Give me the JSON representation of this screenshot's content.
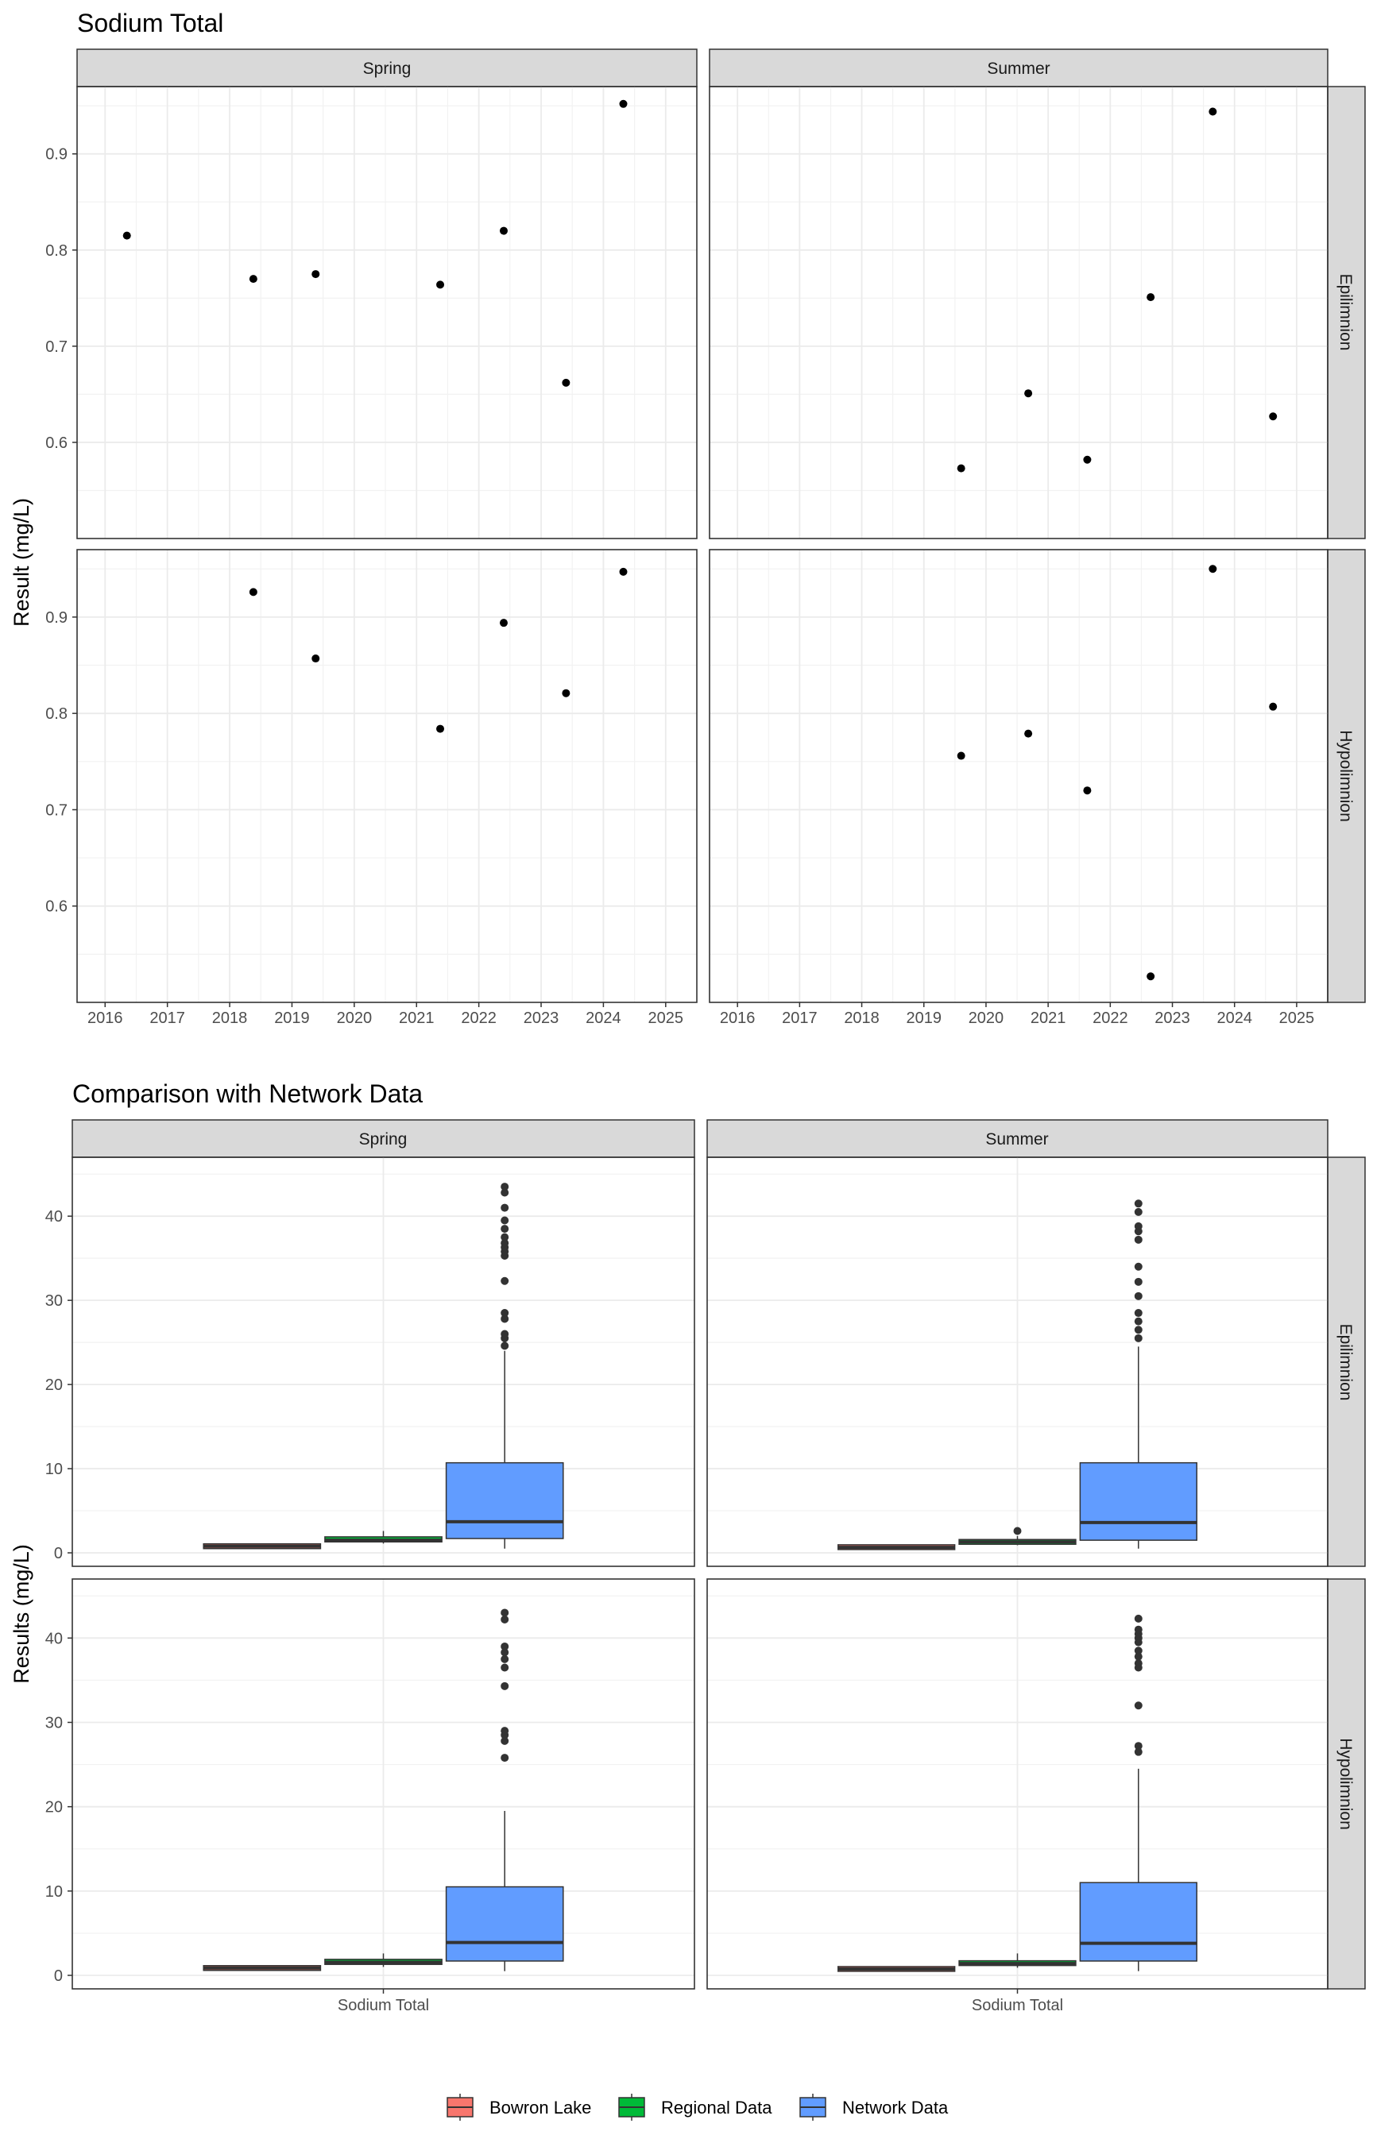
{
  "chart_data": [
    {
      "type": "scatter",
      "title": "Sodium Total",
      "ylabel": "Result (mg/L)",
      "xlabel": "",
      "facet_cols": [
        "Spring",
        "Summer"
      ],
      "facet_rows": [
        "Epilimnion",
        "Hypolimnion"
      ],
      "x_ticks": [
        "2016",
        "2017",
        "2018",
        "2019",
        "2020",
        "2021",
        "2022",
        "2023",
        "2024",
        "2025"
      ],
      "xlim": [
        2015.55,
        2025.5
      ],
      "ylim": [
        0.5,
        0.97
      ],
      "y_ticks": [
        "0.6",
        "0.7",
        "0.8",
        "0.9"
      ],
      "grid": true,
      "panels": [
        {
          "col": "Spring",
          "row": "Epilimnion",
          "points": [
            {
              "x": 2016.35,
              "y": 0.815
            },
            {
              "x": 2018.38,
              "y": 0.77
            },
            {
              "x": 2019.38,
              "y": 0.775
            },
            {
              "x": 2021.38,
              "y": 0.764
            },
            {
              "x": 2022.4,
              "y": 0.82
            },
            {
              "x": 2023.4,
              "y": 0.662
            },
            {
              "x": 2024.32,
              "y": 0.952
            }
          ]
        },
        {
          "col": "Summer",
          "row": "Epilimnion",
          "points": [
            {
              "x": 2019.6,
              "y": 0.573
            },
            {
              "x": 2020.68,
              "y": 0.651
            },
            {
              "x": 2021.63,
              "y": 0.582
            },
            {
              "x": 2022.65,
              "y": 0.751
            },
            {
              "x": 2023.65,
              "y": 0.944
            },
            {
              "x": 2024.62,
              "y": 0.627
            }
          ]
        },
        {
          "col": "Spring",
          "row": "Hypolimnion",
          "points": [
            {
              "x": 2018.38,
              "y": 0.926
            },
            {
              "x": 2019.38,
              "y": 0.857
            },
            {
              "x": 2021.38,
              "y": 0.784
            },
            {
              "x": 2022.4,
              "y": 0.894
            },
            {
              "x": 2023.4,
              "y": 0.821
            },
            {
              "x": 2024.32,
              "y": 0.947
            }
          ]
        },
        {
          "col": "Summer",
          "row": "Hypolimnion",
          "points": [
            {
              "x": 2019.6,
              "y": 0.756
            },
            {
              "x": 2020.68,
              "y": 0.779
            },
            {
              "x": 2021.63,
              "y": 0.72
            },
            {
              "x": 2022.65,
              "y": 0.527
            },
            {
              "x": 2023.65,
              "y": 0.95
            },
            {
              "x": 2024.62,
              "y": 0.807
            }
          ]
        }
      ]
    },
    {
      "type": "box",
      "title": "Comparison with Network Data",
      "ylabel": "Results (mg/L)",
      "facet_cols": [
        "Spring",
        "Summer"
      ],
      "facet_rows": [
        "Epilimnion",
        "Hypolimnion"
      ],
      "x_ticks": [
        "Sodium Total"
      ],
      "ylim": [
        -1.6,
        47
      ],
      "y_ticks": [
        "0",
        "10",
        "20",
        "30",
        "40"
      ],
      "grid": true,
      "legend_position": "bottom",
      "series": [
        {
          "name": "Bowron Lake",
          "color": "#F8766D"
        },
        {
          "name": "Regional Data",
          "color": "#00BA38"
        },
        {
          "name": "Network Data",
          "color": "#619CFF"
        }
      ],
      "panels": [
        {
          "col": "Spring",
          "row": "Epilimnion",
          "boxes": [
            {
              "series": "Bowron Lake",
              "min": 0.66,
              "q1": 0.76,
              "median": 0.78,
              "q3": 0.81,
              "max": 0.95,
              "outliers": []
            },
            {
              "series": "Regional Data",
              "min": 1.1,
              "q1": 1.3,
              "median": 1.5,
              "q3": 1.9,
              "max": 2.6,
              "outliers": []
            },
            {
              "series": "Network Data",
              "min": 0.5,
              "q1": 1.7,
              "median": 3.7,
              "q3": 10.7,
              "max": 24,
              "outliers": [
                24.6,
                25.5,
                26,
                27.8,
                28.5,
                32.3,
                35.3,
                35.8,
                36.3,
                36.8,
                37.5,
                38.5,
                39.5,
                41,
                42.8,
                43.5
              ]
            }
          ]
        },
        {
          "col": "Summer",
          "row": "Epilimnion",
          "boxes": [
            {
              "series": "Bowron Lake",
              "min": 0.57,
              "q1": 0.6,
              "median": 0.65,
              "q3": 0.75,
              "max": 0.94,
              "outliers": []
            },
            {
              "series": "Regional Data",
              "min": 0.9,
              "q1": 1.1,
              "median": 1.3,
              "q3": 1.5,
              "max": 2.0,
              "outliers": [
                2.6
              ]
            },
            {
              "series": "Network Data",
              "min": 0.5,
              "q1": 1.5,
              "median": 3.6,
              "q3": 10.7,
              "max": 24.5,
              "outliers": [
                25.5,
                26.5,
                27.5,
                28.5,
                30.5,
                32.2,
                34,
                37.2,
                38.2,
                38.8,
                40.5,
                41.5
              ]
            }
          ]
        },
        {
          "col": "Spring",
          "row": "Hypolimnion",
          "boxes": [
            {
              "series": "Bowron Lake",
              "min": 0.78,
              "q1": 0.82,
              "median": 0.87,
              "q3": 0.92,
              "max": 0.95,
              "outliers": []
            },
            {
              "series": "Regional Data",
              "min": 1.0,
              "q1": 1.3,
              "median": 1.55,
              "q3": 1.9,
              "max": 2.6,
              "outliers": []
            },
            {
              "series": "Network Data",
              "min": 0.5,
              "q1": 1.7,
              "median": 3.9,
              "q3": 10.5,
              "max": 19.5,
              "outliers": [
                25.8,
                27.8,
                28.5,
                29,
                34.3,
                36.5,
                37.5,
                38.3,
                39,
                42.2,
                43
              ]
            }
          ]
        },
        {
          "col": "Summer",
          "row": "Hypolimnion",
          "boxes": [
            {
              "series": "Bowron Lake",
              "min": 0.53,
              "q1": 0.72,
              "median": 0.76,
              "q3": 0.8,
              "max": 0.95,
              "outliers": []
            },
            {
              "series": "Regional Data",
              "min": 0.9,
              "q1": 1.2,
              "median": 1.4,
              "q3": 1.7,
              "max": 2.6,
              "outliers": []
            },
            {
              "series": "Network Data",
              "min": 0.5,
              "q1": 1.7,
              "median": 3.8,
              "q3": 11.0,
              "max": 24.5,
              "outliers": [
                26.5,
                27.2,
                32,
                36.5,
                37,
                37.8,
                38.5,
                39.5,
                40,
                40.5,
                41,
                42.3
              ]
            }
          ]
        }
      ]
    }
  ]
}
